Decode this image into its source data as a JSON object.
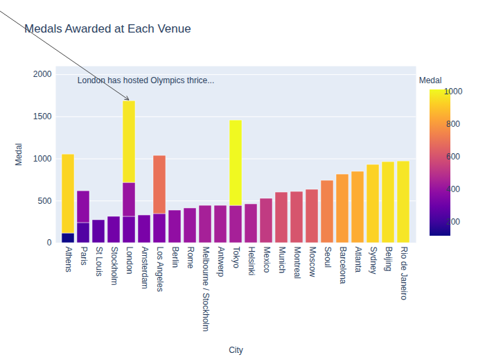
{
  "chart_data": {
    "type": "bar",
    "stacked": true,
    "title": "Medals Awarded at Each Venue",
    "x_label": "City",
    "y_label": "Medal",
    "categories": [
      "Athens",
      "Paris",
      "St Louis",
      "Stockholm",
      "London",
      "Amsterdam",
      "Los Angeles",
      "Berlin",
      "Rome",
      "Melbourne / Stockholm",
      "Antwerp",
      "Tokyo",
      "Helsinki",
      "Mexico",
      "Munich",
      "Montreal",
      "Moscow",
      "Seoul",
      "Barcelona",
      "Atlanta",
      "Sydney",
      "Beijing",
      "Rio de Janeiro"
    ],
    "values": [
      [
        115,
        938
      ],
      [
        239,
        378
      ],
      [
        272
      ],
      [
        313
      ],
      [
        313,
        403,
        971
      ],
      [
        329
      ],
      [
        346,
        691
      ],
      [
        387
      ],
      [
        412
      ],
      [
        444
      ],
      [
        444
      ],
      [
        444,
        1013
      ],
      [
        461
      ],
      [
        527
      ],
      [
        601
      ],
      [
        609
      ],
      [
        634
      ],
      [
        741
      ],
      [
        815
      ],
      [
        848
      ],
      [
        930
      ],
      [
        963
      ],
      [
        971
      ]
    ],
    "color": "plasma",
    "colorbar": {
      "label": "Medal",
      "range": [
        115,
        1013
      ],
      "ticks": [
        200,
        400,
        600,
        800,
        1000
      ]
    },
    "ylim": [
      0,
      2100
    ],
    "yticks": [
      0,
      500,
      1000,
      1500,
      2000
    ],
    "grid": true,
    "annotations": [
      {
        "text": "London has hosted Olympics thrice...",
        "x": "London"
      }
    ]
  }
}
